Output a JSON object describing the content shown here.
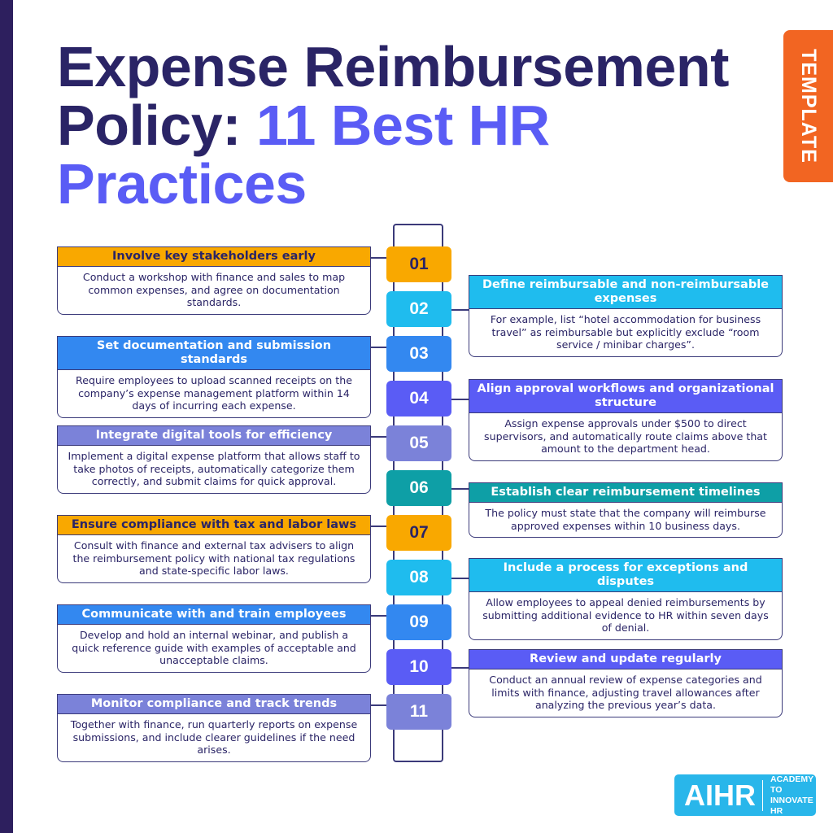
{
  "colors": {
    "orange": "#f9a800",
    "cyan": "#1fbcee",
    "blue": "#3388f0",
    "indigo": "#5a5cf5",
    "slate": "#7b82d9",
    "teal": "#0e9fa6",
    "title": "#2a2466",
    "tab": "#f26522"
  },
  "title": {
    "line1": "Expense Reimbursement",
    "line2a": "Policy: ",
    "line2b": "11 Best HR",
    "line3": "Practices"
  },
  "tab_label": "TEMPLATE",
  "practices": [
    {
      "num": "01",
      "side": "left",
      "color": "orange",
      "dark_text": true,
      "title": "Involve key stakeholders early",
      "body": "Conduct a workshop with finance and sales to map common expenses, and agree on documentation standards."
    },
    {
      "num": "02",
      "side": "right",
      "color": "cyan",
      "title": "Define reimbursable and non-reimbursable expenses",
      "body": "For example, list “hotel accommodation for business travel” as reimbursable but explicitly exclude “room service / minibar charges”."
    },
    {
      "num": "03",
      "side": "left",
      "color": "blue",
      "title": "Set documentation and submission standards",
      "body": "Require employees to upload scanned receipts on the company’s expense management platform within 14 days of incurring each expense."
    },
    {
      "num": "04",
      "side": "right",
      "color": "indigo",
      "title": "Align approval workflows and organizational structure",
      "body": "Assign expense approvals under $500 to direct supervisors, and automatically route claims above that amount to the department head."
    },
    {
      "num": "05",
      "side": "left",
      "color": "slate",
      "title": "Integrate digital tools for efficiency",
      "body": "Implement a digital expense platform that allows staff to take photos of receipts, automatically categorize them correctly, and submit claims for quick approval."
    },
    {
      "num": "06",
      "side": "right",
      "color": "teal",
      "title": "Establish clear reimbursement timelines",
      "body": "The policy must state that the company will reimburse approved expenses within 10 business days."
    },
    {
      "num": "07",
      "side": "left",
      "color": "orange",
      "dark_text": true,
      "title": "Ensure compliance with tax and labor laws",
      "body": "Consult with finance and external tax advisers to align the reimbursement policy with national tax regulations and state-specific labor laws."
    },
    {
      "num": "08",
      "side": "right",
      "color": "cyan",
      "title": "Include a process for exceptions and disputes",
      "body": "Allow employees to appeal denied reimbursements by submitting additional evidence to HR within seven days of denial."
    },
    {
      "num": "09",
      "side": "left",
      "color": "blue",
      "title": "Communicate with and train employees",
      "body": "Develop and hold an internal webinar, and publish a quick reference guide with examples of acceptable and unacceptable claims."
    },
    {
      "num": "10",
      "side": "right",
      "color": "indigo",
      "title": "Review and update regularly",
      "body": "Conduct an annual review of expense categories and limits with finance, adjusting travel allowances after analyzing the previous year’s data."
    },
    {
      "num": "11",
      "side": "left",
      "color": "slate",
      "title": "Monitor compliance and track trends",
      "body": "Together with finance, run quarterly reports on expense submissions, and include clearer guidelines if the need arises."
    }
  ],
  "logo": {
    "mark": "AIHR",
    "line1": "ACADEMY TO",
    "line2": "INNOVATE HR"
  }
}
